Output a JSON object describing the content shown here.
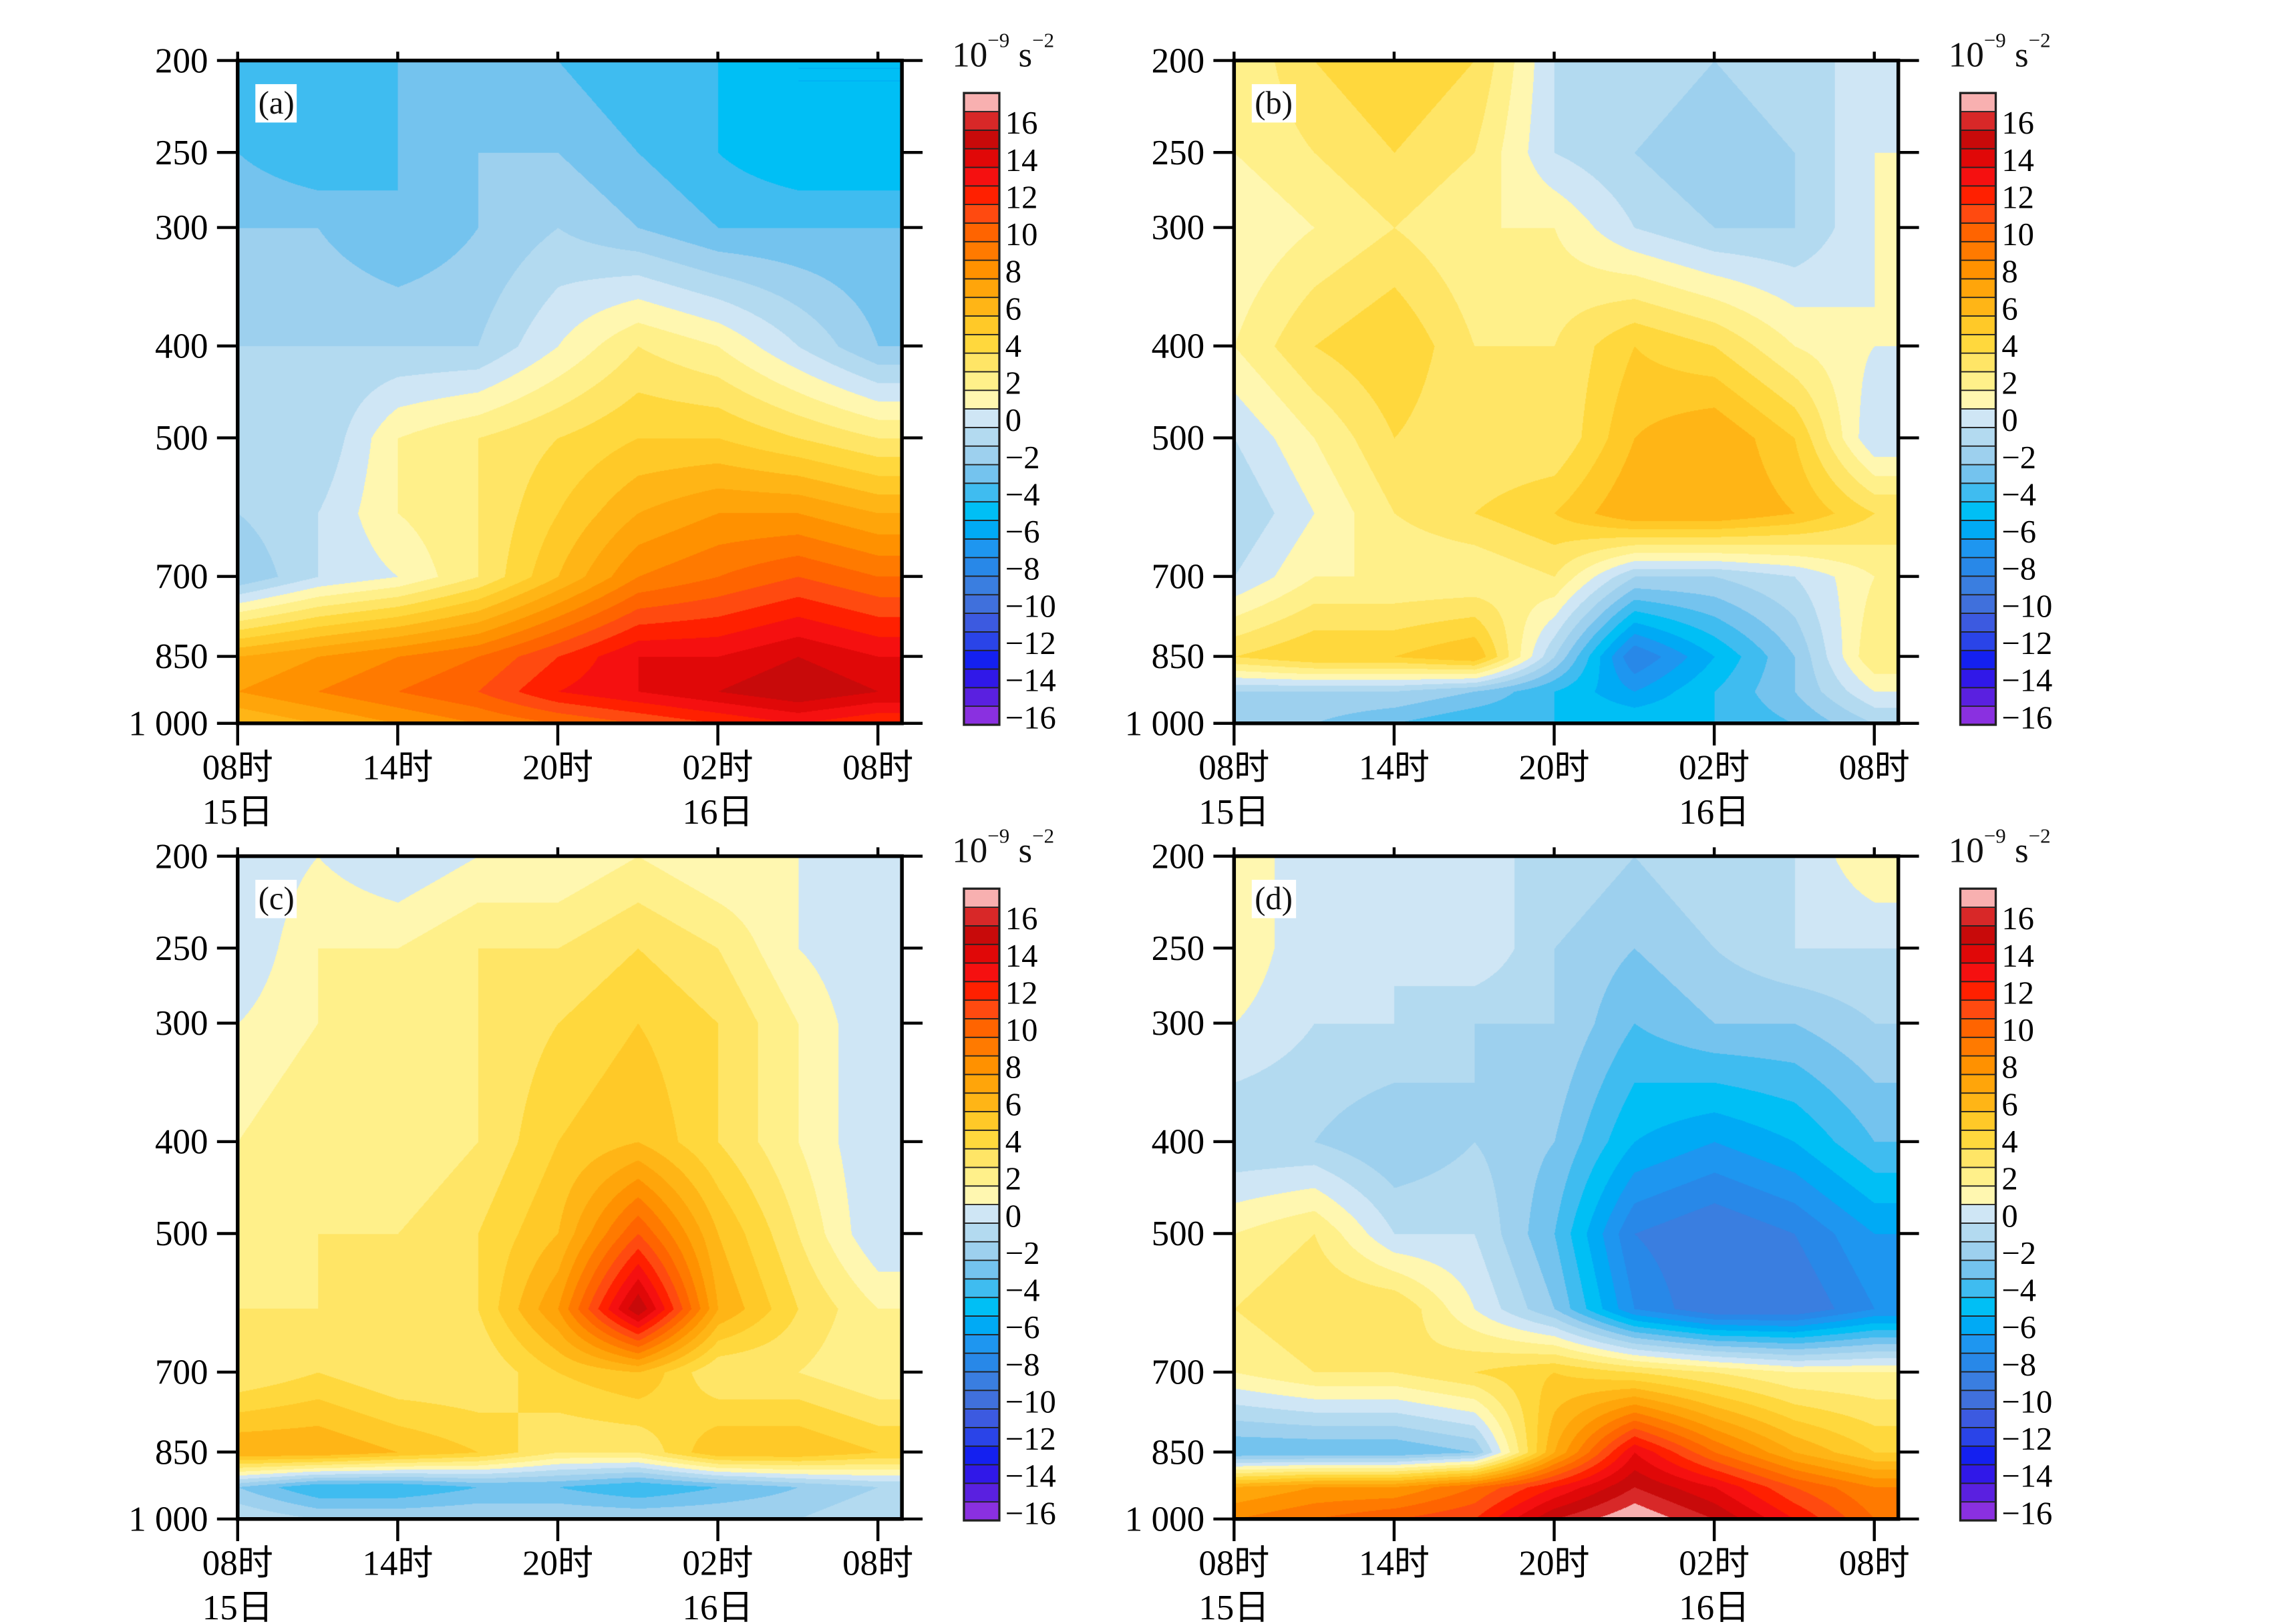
{
  "colorbar": {
    "unit_base": "10",
    "unit_exp": "−9",
    "unit_sym": "s",
    "unit_sym_exp": "−2",
    "labels": [
      "16",
      "14",
      "12",
      "10",
      "8",
      "6",
      "4",
      "2",
      "0",
      "−2",
      "−4",
      "−6",
      "−8",
      "−10",
      "−12",
      "−14",
      "−16"
    ],
    "label_values": [
      16,
      14,
      12,
      10,
      8,
      6,
      4,
      2,
      0,
      -2,
      -4,
      -6,
      -8,
      -10,
      -12,
      -14,
      -16
    ],
    "range": [
      -17,
      17
    ],
    "colors": [
      "#8a30e0",
      "#5a20e0",
      "#3018e8",
      "#1420f0",
      "#2a44e8",
      "#3c5ae0",
      "#4070dc",
      "#3a7ee0",
      "#2888e8",
      "#1e96f0",
      "#00aaf5",
      "#00bff5",
      "#3fbcf0",
      "#74c3ee",
      "#9dd0ee",
      "#b3daf0",
      "#cfe6f5",
      "#fff7b0",
      "#fff08a",
      "#ffe566",
      "#ffd83d",
      "#ffc928",
      "#ffb516",
      "#ffa50a",
      "#ff9100",
      "#ff7a00",
      "#ff6400",
      "#ff4a10",
      "#ff2000",
      "#f51010",
      "#e00808",
      "#c80a0a",
      "#d82828",
      "#f8b0b0"
    ]
  },
  "axes": {
    "y_ticks": [
      "200",
      "250",
      "300",
      "400",
      "500",
      "700",
      "850",
      "1 000"
    ],
    "y_tick_values": [
      200,
      250,
      300,
      400,
      500,
      700,
      850,
      1000
    ],
    "ylim": [
      200,
      1000
    ],
    "x_ticks": [
      "08时",
      "14时",
      "20时",
      "02时",
      "08时"
    ],
    "x_tick_hours": [
      0,
      6,
      12,
      18,
      24
    ],
    "xlim_hours": [
      0,
      24.9
    ],
    "date_labels": [
      {
        "text": "15日",
        "hour": 0
      },
      {
        "text": "16日",
        "hour": 18
      }
    ]
  },
  "chart_data": [
    {
      "type": "heatmap",
      "panel": "(a)",
      "levels": [
        200,
        250,
        300,
        400,
        500,
        600,
        700,
        850,
        925,
        1000
      ],
      "hours": [
        0,
        3,
        6,
        9,
        12,
        15,
        18,
        21,
        24
      ],
      "values": [
        [
          -4,
          -4,
          -4,
          -3,
          -4,
          -5,
          -5,
          -6,
          -6
        ],
        [
          -4,
          -5,
          -4,
          -3,
          -3,
          -4,
          -5,
          -6,
          -6
        ],
        [
          -3,
          -3,
          -4,
          -3,
          -2,
          -3,
          -4,
          -4,
          -4
        ],
        [
          -2,
          -2,
          -2,
          -2,
          0,
          2,
          1,
          -1,
          -3
        ],
        [
          -2,
          -2,
          1,
          2,
          3,
          4,
          4,
          3,
          2
        ],
        [
          -2,
          -1,
          1,
          2,
          4,
          6,
          7,
          7,
          6
        ],
        [
          -3,
          -1,
          0,
          2,
          5,
          8,
          9,
          10,
          9
        ],
        [
          6,
          7,
          8,
          9,
          11,
          13,
          13,
          14,
          13
        ],
        [
          7,
          8,
          9,
          10,
          12,
          13,
          14,
          15,
          14
        ],
        [
          5,
          6,
          7,
          8,
          9,
          10,
          11,
          12,
          11
        ]
      ]
    },
    {
      "type": "heatmap",
      "panel": "(b)",
      "levels": [
        200,
        250,
        300,
        400,
        500,
        600,
        700,
        850,
        925,
        1000
      ],
      "hours": [
        0,
        3,
        6,
        9,
        12,
        15,
        18,
        21,
        24
      ],
      "values": [
        [
          1,
          3,
          4,
          3,
          -1,
          -1,
          -2,
          -1,
          -1
        ],
        [
          1,
          2,
          3,
          2,
          -1,
          -2,
          -3,
          -2,
          0
        ],
        [
          0,
          1,
          2,
          1,
          1,
          -1,
          -2,
          -2,
          0
        ],
        [
          1,
          3,
          4,
          2,
          2,
          4,
          3,
          1,
          0
        ],
        [
          -1,
          1,
          3,
          2,
          2,
          5,
          6,
          4,
          -1
        ],
        [
          -2,
          0,
          2,
          3,
          4,
          6,
          6,
          5,
          3
        ],
        [
          -1,
          1,
          1,
          1,
          2,
          -2,
          -2,
          -1,
          1
        ],
        [
          3,
          4,
          4,
          5,
          -2,
          -9,
          -6,
          -3,
          2
        ],
        [
          -2,
          -2,
          -2,
          -3,
          -5,
          -7,
          -5,
          -3,
          0
        ],
        [
          -3,
          -3,
          -4,
          -5,
          -5,
          -5,
          -5,
          -4,
          -2
        ]
      ]
    },
    {
      "type": "heatmap",
      "panel": "(c)",
      "levels": [
        200,
        250,
        300,
        400,
        500,
        600,
        700,
        850,
        925,
        1000
      ],
      "hours": [
        0,
        3,
        6,
        9,
        12,
        15,
        18,
        21,
        24
      ],
      "values": [
        [
          -1,
          0,
          -1,
          0,
          0,
          1,
          0,
          0,
          0
        ],
        [
          -1,
          1,
          1,
          2,
          2,
          3,
          2,
          0,
          -1
        ],
        [
          0,
          1,
          1,
          2,
          3,
          4,
          3,
          1,
          -1
        ],
        [
          1,
          2,
          1,
          2,
          4,
          5,
          3,
          1,
          -1
        ],
        [
          1,
          2,
          2,
          3,
          5,
          10,
          5,
          2,
          -1
        ],
        [
          2,
          2,
          2,
          3,
          7,
          15,
          6,
          3,
          1
        ],
        [
          2,
          3,
          2,
          2,
          4,
          5,
          2,
          2,
          1
        ],
        [
          6,
          6,
          5,
          4,
          2,
          2,
          5,
          5,
          4
        ],
        [
          -3,
          -5,
          -5,
          -4,
          -4,
          -5,
          -4,
          -3,
          -2
        ],
        [
          -1,
          -2,
          -2,
          -2,
          -2,
          -2,
          -2,
          -2,
          -1
        ]
      ]
    },
    {
      "type": "heatmap",
      "panel": "(d)",
      "levels": [
        200,
        250,
        300,
        400,
        500,
        600,
        700,
        850,
        925,
        1000
      ],
      "hours": [
        0,
        3,
        6,
        9,
        12,
        15,
        18,
        21,
        24
      ],
      "values": [
        [
          1,
          -1,
          -1,
          -1,
          -1,
          -2,
          -1,
          -1,
          1
        ],
        [
          1,
          -1,
          -1,
          0,
          -2,
          -3,
          -2,
          -1,
          -1
        ],
        [
          0,
          -1,
          -1,
          -2,
          -2,
          -4,
          -3,
          -3,
          -2
        ],
        [
          -2,
          -2,
          -3,
          -2,
          -3,
          -6,
          -7,
          -6,
          -4
        ],
        [
          1,
          2,
          -1,
          -1,
          -4,
          -9,
          -10,
          -9,
          -7
        ],
        [
          2,
          3,
          3,
          0,
          -3,
          -8,
          -10,
          -10,
          -8
        ],
        [
          1,
          2,
          2,
          3,
          4,
          3,
          2,
          1,
          1
        ],
        [
          -4,
          -4,
          -4,
          -3,
          6,
          13,
          9,
          6,
          4
        ],
        [
          6,
          7,
          7,
          9,
          12,
          15,
          13,
          10,
          8
        ],
        [
          8,
          9,
          10,
          11,
          15,
          17,
          15,
          12,
          9
        ]
      ]
    }
  ]
}
